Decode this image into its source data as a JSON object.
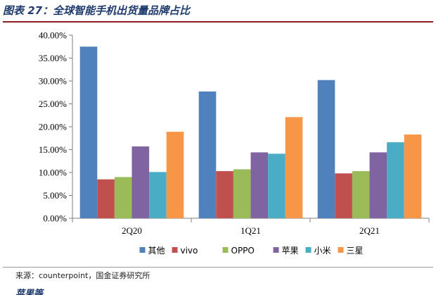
{
  "figure": {
    "title": "图表 27：全球智能手机出货量品牌占比",
    "source": "来源：counterpoint，国金证券研究所",
    "next_paragraph_partial": "苹果等"
  },
  "chart_data": {
    "type": "bar",
    "categories": [
      "2Q20",
      "1Q21",
      "2Q21"
    ],
    "ylim": [
      0,
      40
    ],
    "ytick_labels": [
      "0.00%",
      "5.00%",
      "10.00%",
      "15.00%",
      "20.00%",
      "25.00%",
      "30.00%",
      "35.00%",
      "40.00%"
    ],
    "legend_position": "bottom",
    "grid": false,
    "series": [
      {
        "name": "其他",
        "color": "#4f81bd",
        "values": [
          37.5,
          27.7,
          30.2
        ]
      },
      {
        "name": "vivo",
        "color": "#c0504d",
        "values": [
          8.5,
          10.3,
          9.8
        ]
      },
      {
        "name": "OPPO",
        "color": "#9bbb59",
        "values": [
          9.0,
          10.7,
          10.3
        ]
      },
      {
        "name": "苹果",
        "color": "#8064a2",
        "values": [
          15.7,
          14.4,
          14.4
        ]
      },
      {
        "name": "小米",
        "color": "#4bacc6",
        "values": [
          10.1,
          14.1,
          16.6
        ]
      },
      {
        "name": "三星",
        "color": "#f79646",
        "values": [
          18.9,
          22.1,
          18.3
        ]
      }
    ]
  }
}
